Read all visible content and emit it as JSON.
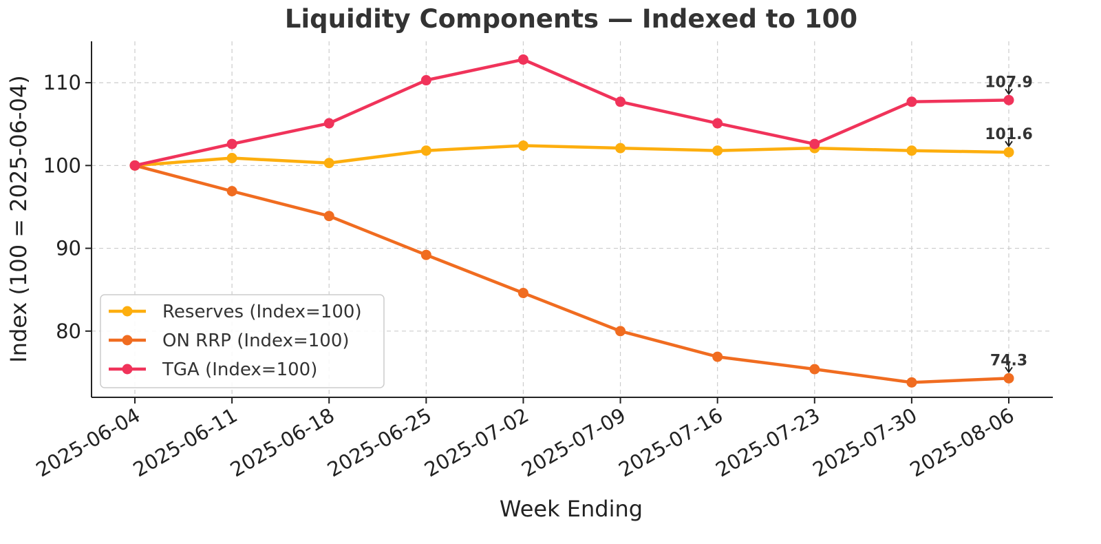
{
  "chart_data": {
    "type": "line",
    "title": "Liquidity Components — Indexed to 100",
    "xlabel": "Week Ending",
    "ylabel": "Index (100 = 2025-06-04)",
    "categories": [
      "2025-06-04",
      "2025-06-11",
      "2025-06-18",
      "2025-06-25",
      "2025-07-02",
      "2025-07-09",
      "2025-07-16",
      "2025-07-23",
      "2025-07-30",
      "2025-08-06"
    ],
    "ylim": [
      72.0,
      115.0
    ],
    "yticks": [
      80,
      90,
      100,
      110
    ],
    "grid": true,
    "legend_position": "lower-left",
    "series": [
      {
        "name": "Reserves (Index=100)",
        "color": "#fdae0e",
        "values": [
          100.0,
          100.9,
          100.3,
          101.8,
          102.4,
          102.1,
          101.8,
          102.1,
          101.8,
          101.6
        ]
      },
      {
        "name": "ON RRP (Index=100)",
        "color": "#f06c20",
        "values": [
          100.0,
          96.9,
          93.9,
          89.2,
          84.6,
          80.0,
          76.9,
          75.4,
          73.8,
          74.3
        ]
      },
      {
        "name": "TGA (Index=100)",
        "color": "#f0335a",
        "values": [
          100.0,
          102.6,
          105.1,
          110.3,
          112.8,
          107.7,
          105.1,
          102.6,
          107.7,
          107.9
        ]
      }
    ],
    "annotations": [
      {
        "series": "TGA (Index=100)",
        "category": "2025-08-06",
        "text": "107.9"
      },
      {
        "series": "Reserves (Index=100)",
        "category": "2025-08-06",
        "text": "101.6"
      },
      {
        "series": "ON RRP (Index=100)",
        "category": "2025-08-06",
        "text": "74.3"
      }
    ]
  }
}
